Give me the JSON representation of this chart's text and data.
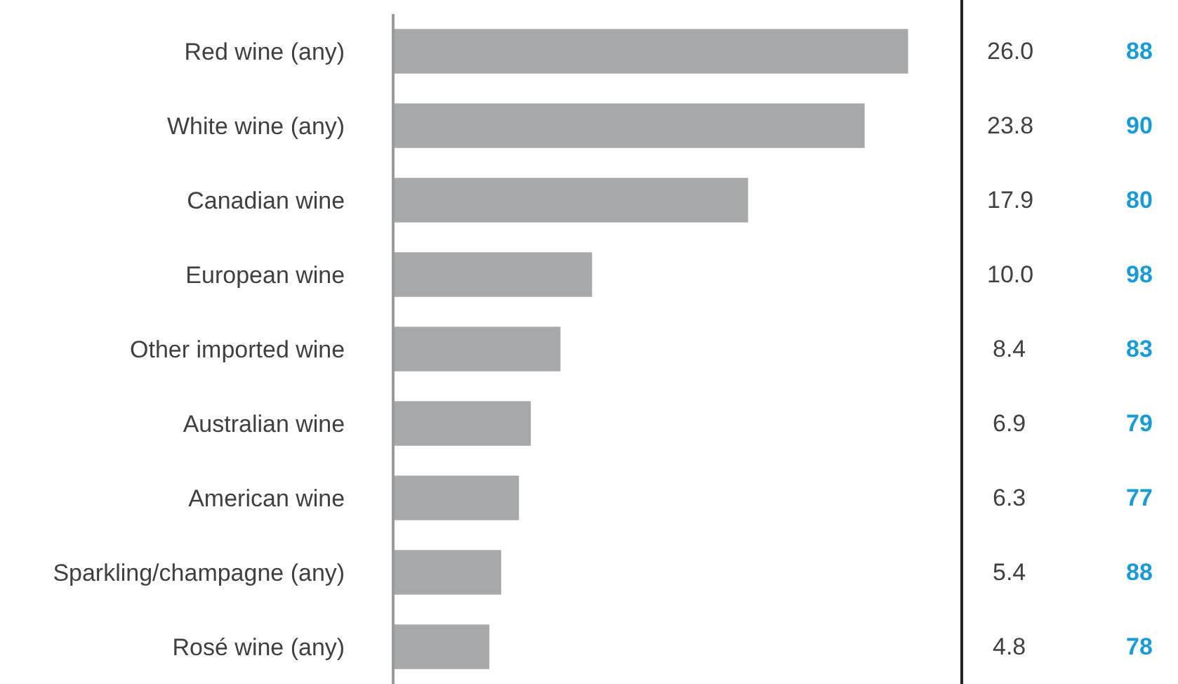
{
  "chart_data": {
    "type": "bar",
    "orientation": "horizontal",
    "categories": [
      "Red wine (any)",
      "White wine (any)",
      "Canadian wine",
      "European wine",
      "Other imported wine",
      "Australian wine",
      "American wine",
      "Sparkling/champagne (any)",
      "Rosé wine (any)"
    ],
    "values": [
      26.0,
      23.8,
      17.9,
      10.0,
      8.4,
      6.9,
      6.3,
      5.4,
      4.8
    ],
    "value_labels": [
      "26.0",
      "23.8",
      "17.9",
      "10.0",
      "8.4",
      "6.9",
      "6.3",
      "5.4",
      "4.8"
    ],
    "color": "#a7a8aa",
    "grid": false,
    "legend": false,
    "annotations": [
      "88",
      "90",
      "80",
      "98",
      "83",
      "79",
      "77",
      "88",
      "78"
    ]
  }
}
